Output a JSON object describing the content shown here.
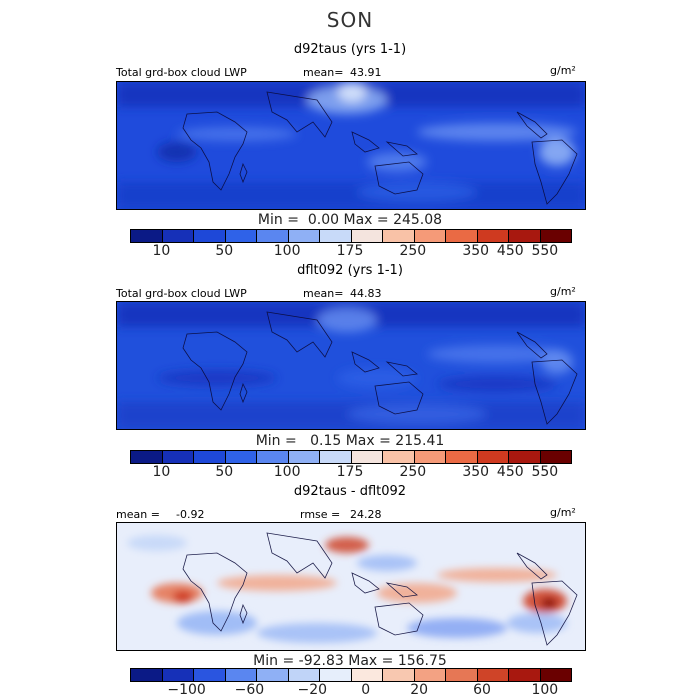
{
  "season": "SON",
  "panels": [
    {
      "title": "d92taus (yrs 1-1)",
      "field_label": "Total grd-box cloud LWP",
      "mean_label": "mean=",
      "mean_value": "43.91",
      "units": "g/m²",
      "min_label": "Min =",
      "min_value": "0.00",
      "max_label": "Max =",
      "max_value": "245.08",
      "tick_labels": [
        "10",
        "50",
        "100",
        "175",
        "250",
        "350",
        "450",
        "550"
      ]
    },
    {
      "title": "dflt092 (yrs 1-1)",
      "field_label": "Total grd-box cloud LWP",
      "mean_label": "mean=",
      "mean_value": "44.83",
      "units": "g/m²",
      "min_label": "Min =",
      "min_value": "0.15",
      "max_label": "Max =",
      "max_value": "215.41",
      "tick_labels": [
        "10",
        "50",
        "100",
        "175",
        "250",
        "350",
        "450",
        "550"
      ]
    },
    {
      "title": "d92taus - dflt092",
      "mean_label": "mean =",
      "mean_value": "-0.92",
      "rmse_label": "rmse =",
      "rmse_value": "24.28",
      "units": "g/m²",
      "min_label": "Min =",
      "min_value": "-92.83",
      "max_label": "Max =",
      "max_value": "156.75",
      "tick_labels": [
        "−100",
        "−60",
        "−20",
        "0",
        "20",
        "60",
        "100"
      ]
    }
  ],
  "colors": {
    "abs_palette": [
      "#0b1a86",
      "#1630b8",
      "#1e48d8",
      "#2f62e8",
      "#5a86f0",
      "#8fb0f5",
      "#c8daf9",
      "#f4e4de",
      "#f9c2a7",
      "#f59a78",
      "#ea6a44",
      "#cf3a20",
      "#a8180f",
      "#6a0000"
    ],
    "diff_palette": [
      "#0b1a86",
      "#1630b8",
      "#2a55e0",
      "#5a86f0",
      "#8fb0f5",
      "#c0d4f8",
      "#e6eefb",
      "#fbe8de",
      "#f8c8b0",
      "#f3a283",
      "#e67755",
      "#cf4428",
      "#a8180f",
      "#6a0000"
    ]
  }
}
